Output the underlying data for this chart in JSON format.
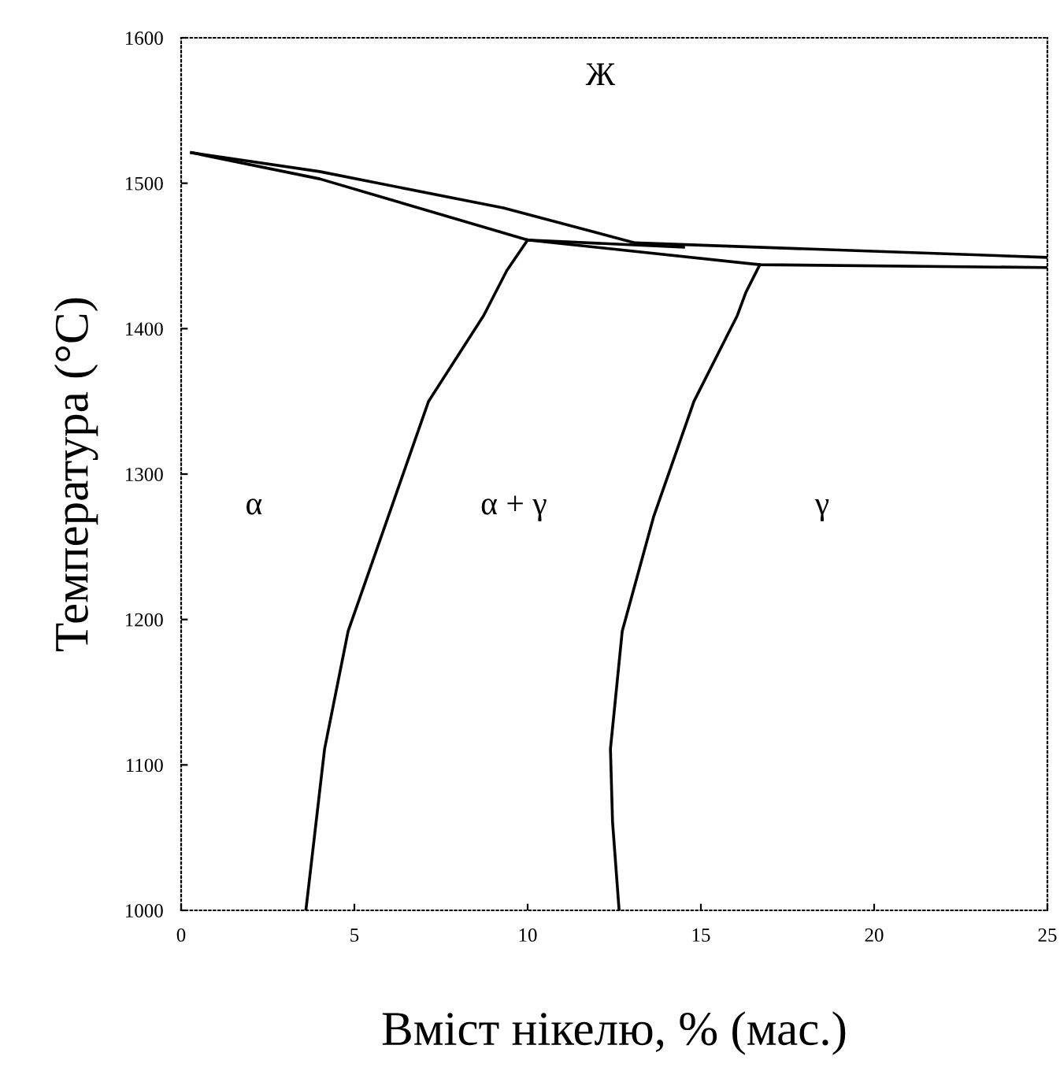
{
  "chart_data": {
    "type": "line",
    "xlabel": "Вміст нікелю, % (мас.)",
    "ylabel": "Температура (°C)",
    "xlim": [
      0,
      25
    ],
    "ylim": [
      1000,
      1600
    ],
    "xticks": [
      0,
      5,
      10,
      15,
      20,
      25
    ],
    "yticks": [
      1000,
      1100,
      1200,
      1300,
      1400,
      1500,
      1600
    ],
    "grid": false,
    "legend": false,
    "marker": "none",
    "line_style": "solid",
    "series": [
      {
        "color": "#000000",
        "x": [
          0.3,
          4,
          9.3,
          13.1,
          25
        ],
        "values": [
          1521,
          1508,
          1483,
          1459,
          1449
        ]
      },
      {
        "color": "#000000",
        "x": [
          0.3,
          4,
          10,
          16.7,
          25
        ],
        "values": [
          1521,
          1503,
          1461,
          1444,
          1442
        ]
      },
      {
        "color": "#000000",
        "x": [
          10,
          14.5
        ],
        "values": [
          1461,
          1456
        ]
      },
      {
        "color": "#000000",
        "x": [
          10,
          9.4,
          8.73,
          7.14,
          5.98,
          4.82,
          4.14,
          3.6
        ],
        "values": [
          1461,
          1440,
          1409,
          1350,
          1271,
          1192,
          1111,
          1000
        ]
      },
      {
        "color": "#000000",
        "x": [
          16.7,
          16.3,
          16.05,
          14.8,
          13.64,
          12.73,
          12.39,
          12.45,
          12.64
        ],
        "values": [
          1444,
          1425,
          1409,
          1350,
          1271,
          1192,
          1111,
          1061,
          1000
        ]
      }
    ],
    "annotations": [
      "Ж",
      "α",
      "α + γ",
      "γ"
    ]
  }
}
